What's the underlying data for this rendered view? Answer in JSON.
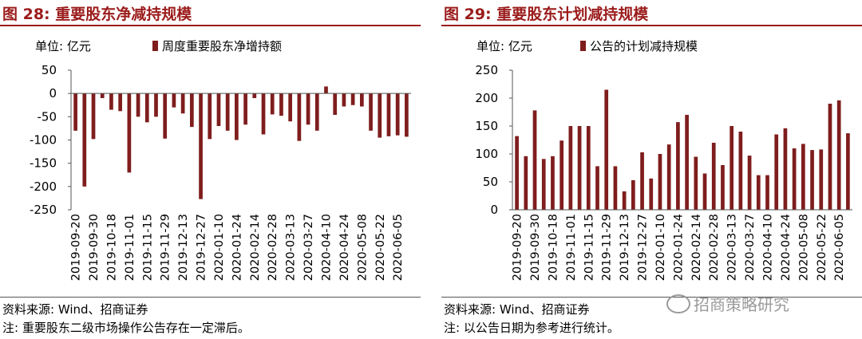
{
  "chart_data": [
    {
      "type": "bar",
      "title": "图 28:  重要股东净减持规模",
      "unit_label": "单位:  亿元",
      "series": [
        {
          "name": "周度重要股东净增持额",
          "color": "#7f1d1d",
          "values": [
            -80,
            -200,
            -98,
            -10,
            -35,
            -38,
            -170,
            -50,
            -62,
            -50,
            -97,
            -30,
            -43,
            -72,
            -227,
            -98,
            -70,
            -80,
            -100,
            -67,
            -10,
            -88,
            -45,
            -48,
            -60,
            -102,
            -67,
            -80,
            15,
            -46,
            -28,
            -25,
            -28,
            -80,
            -95,
            -92,
            -90,
            -93
          ]
        }
      ],
      "ylim": [
        -250,
        50
      ],
      "yticks": [
        "50",
        "0",
        "-50",
        "-100",
        "-150",
        "-200",
        "-250"
      ],
      "ytick_values": [
        50,
        0,
        -50,
        -100,
        -150,
        -200,
        -250
      ],
      "xtick_labels": [
        "2019-09-20",
        "2019-09-30",
        "2019-10-18",
        "2019-11-01",
        "2019-11-15",
        "2019-11-29",
        "2019-12-13",
        "2019-12-27",
        "2020-01-10",
        "2020-01-24",
        "2020-02-14",
        "2020-02-28",
        "2020-03-13",
        "2020-03-27",
        "2020-04-10",
        "2020-04-24",
        "2020-05-08",
        "2020-05-22",
        "2020-06-05"
      ],
      "source": "资料来源:  Wind、招商证券",
      "note": "注:  重要股东二级市场操作公告存在一定滞后。"
    },
    {
      "type": "bar",
      "title": "图 29:  重要股东计划减持规模",
      "unit_label": "单位:  亿元",
      "series": [
        {
          "name": "公告的计划减持规模",
          "color": "#7f1d1d",
          "values": [
            132,
            96,
            178,
            91,
            96,
            124,
            150,
            150,
            150,
            78,
            215,
            78,
            33,
            53,
            103,
            56,
            100,
            117,
            157,
            170,
            95,
            65,
            120,
            80,
            150,
            140,
            97,
            62,
            62,
            135,
            146,
            110,
            118,
            107,
            108,
            190,
            196,
            137
          ]
        }
      ],
      "ylim": [
        0,
        250
      ],
      "yticks": [
        "250",
        "200",
        "150",
        "100",
        "50",
        "0"
      ],
      "ytick_values": [
        250,
        200,
        150,
        100,
        50,
        0
      ],
      "xtick_labels": [
        "2019-09-20",
        "2019-09-30",
        "2019-10-18",
        "2019-11-01",
        "2019-11-15",
        "2019-11-29",
        "2019-12-13",
        "2019-12-27",
        "2020-01-10",
        "2020-01-24",
        "2020-02-14",
        "2020-02-28",
        "2020-03-13",
        "2020-03-27",
        "2020-04-10",
        "2020-04-24",
        "2020-05-08",
        "2020-05-22",
        "2020-06-05"
      ],
      "source": "资料来源:  Wind、招商证券",
      "note": "注:  以公告日期为参考进行统计。"
    }
  ],
  "watermark": "招商策略研究"
}
